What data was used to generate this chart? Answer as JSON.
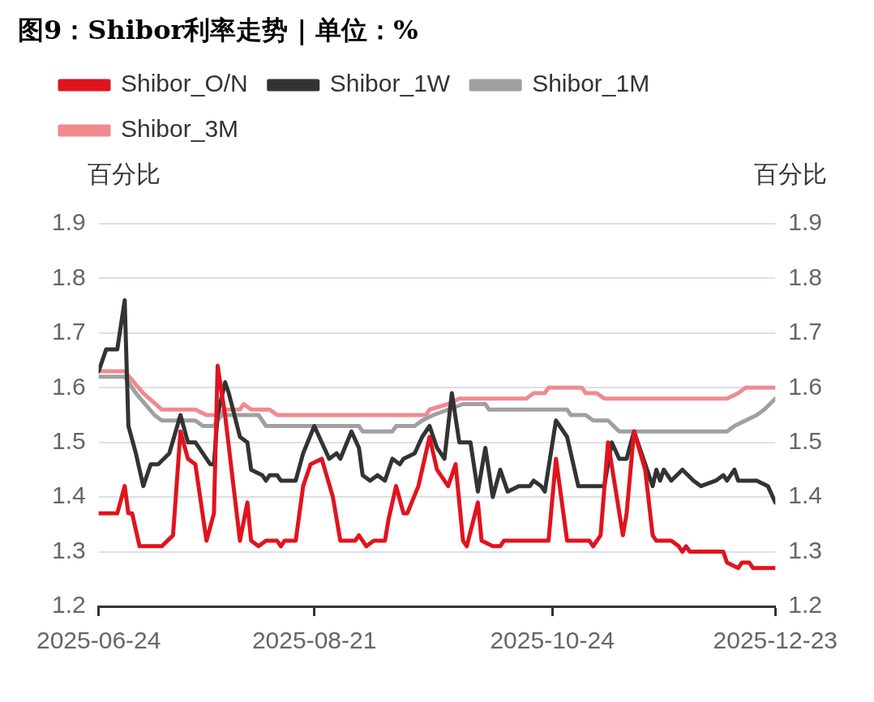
{
  "chart_data": {
    "type": "line",
    "title": "图9：Shibor利率走势 | 单位：%",
    "ylabel": "百分比",
    "y2label": "百分比",
    "xlim": [
      "2025-06-24",
      "2025-12-23"
    ],
    "xticks": [
      "2025-06-24",
      "2025-08-21",
      "2025-10-24",
      "2025-12-23"
    ],
    "ylim": [
      1.2,
      1.9
    ],
    "yticks": [
      1.2,
      1.3,
      1.4,
      1.5,
      1.6,
      1.7,
      1.8,
      1.9
    ],
    "y2lim": [
      1.2,
      1.9
    ],
    "y2ticks": [
      1.2,
      1.3,
      1.4,
      1.5,
      1.6,
      1.7,
      1.8,
      1.9
    ],
    "grid": "y",
    "legend": "top",
    "marker": "none",
    "line_style": "solid",
    "series": [
      {
        "name": "Shibor_O/N",
        "color": "#e0141e",
        "x": [
          "2025-06-24",
          "2025-06-29",
          "2025-07-01",
          "2025-07-02",
          "2025-07-03",
          "2025-07-05",
          "2025-07-11",
          "2025-07-14",
          "2025-07-16",
          "2025-07-18",
          "2025-07-20",
          "2025-07-23",
          "2025-07-25",
          "2025-07-26",
          "2025-07-28",
          "2025-08-01",
          "2025-08-03",
          "2025-08-04",
          "2025-08-06",
          "2025-08-08",
          "2025-08-11",
          "2025-08-12",
          "2025-08-13",
          "2025-08-16",
          "2025-08-18",
          "2025-08-20",
          "2025-08-23",
          "2025-08-26",
          "2025-08-28",
          "2025-09-01",
          "2025-09-02",
          "2025-09-04",
          "2025-09-06",
          "2025-09-09",
          "2025-09-10",
          "2025-09-12",
          "2025-09-14",
          "2025-09-15",
          "2025-09-18",
          "2025-09-21",
          "2025-09-23",
          "2025-09-26",
          "2025-09-28",
          "2025-09-30",
          "2025-10-01",
          "2025-10-04",
          "2025-10-05",
          "2025-10-08",
          "2025-10-10",
          "2025-10-11",
          "2025-10-23",
          "2025-10-25",
          "2025-10-28",
          "2025-11-03",
          "2025-11-04",
          "2025-11-06",
          "2025-11-08",
          "2025-11-12",
          "2025-11-13",
          "2025-11-15",
          "2025-11-18",
          "2025-11-20",
          "2025-11-21",
          "2025-11-25",
          "2025-11-27",
          "2025-11-28",
          "2025-11-29",
          "2025-11-30",
          "2025-12-09",
          "2025-12-10",
          "2025-12-13",
          "2025-12-14",
          "2025-12-16",
          "2025-12-17",
          "2025-12-23"
        ],
        "values": [
          1.37,
          1.37,
          1.42,
          1.37,
          1.37,
          1.31,
          1.31,
          1.33,
          1.52,
          1.47,
          1.46,
          1.32,
          1.37,
          1.64,
          1.55,
          1.32,
          1.39,
          1.32,
          1.31,
          1.32,
          1.32,
          1.31,
          1.32,
          1.32,
          1.42,
          1.46,
          1.47,
          1.4,
          1.32,
          1.32,
          1.33,
          1.31,
          1.32,
          1.32,
          1.36,
          1.42,
          1.37,
          1.37,
          1.42,
          1.51,
          1.45,
          1.42,
          1.46,
          1.32,
          1.31,
          1.39,
          1.32,
          1.31,
          1.31,
          1.32,
          1.32,
          1.47,
          1.32,
          1.32,
          1.31,
          1.33,
          1.5,
          1.33,
          1.37,
          1.52,
          1.45,
          1.33,
          1.32,
          1.32,
          1.31,
          1.3,
          1.31,
          1.3,
          1.3,
          1.28,
          1.27,
          1.28,
          1.28,
          1.27,
          1.27
        ]
      },
      {
        "name": "Shibor_1W",
        "color": "#333333",
        "x": [
          "2025-06-24",
          "2025-06-26",
          "2025-06-29",
          "2025-07-01",
          "2025-07-02",
          "2025-07-04",
          "2025-07-06",
          "2025-07-08",
          "2025-07-10",
          "2025-07-13",
          "2025-07-16",
          "2025-07-18",
          "2025-07-20",
          "2025-07-22",
          "2025-07-24",
          "2025-07-25",
          "2025-07-26",
          "2025-07-28",
          "2025-07-29",
          "2025-08-01",
          "2025-08-03",
          "2025-08-04",
          "2025-08-07",
          "2025-08-08",
          "2025-08-09",
          "2025-08-11",
          "2025-08-12",
          "2025-08-16",
          "2025-08-18",
          "2025-08-21",
          "2025-08-23",
          "2025-08-25",
          "2025-08-27",
          "2025-08-28",
          "2025-08-31",
          "2025-09-02",
          "2025-09-03",
          "2025-09-05",
          "2025-09-07",
          "2025-09-09",
          "2025-09-11",
          "2025-09-13",
          "2025-09-14",
          "2025-09-17",
          "2025-09-19",
          "2025-09-21",
          "2025-09-23",
          "2025-09-25",
          "2025-09-27",
          "2025-09-29",
          "2025-10-02",
          "2025-10-04",
          "2025-10-06",
          "2025-10-08",
          "2025-10-10",
          "2025-10-12",
          "2025-10-15",
          "2025-10-18",
          "2025-10-19",
          "2025-10-21",
          "2025-10-22",
          "2025-10-25",
          "2025-10-28",
          "2025-10-31",
          "2025-11-07",
          "2025-11-09",
          "2025-11-11",
          "2025-11-13",
          "2025-11-15",
          "2025-11-20",
          "2025-11-21",
          "2025-11-22",
          "2025-11-23",
          "2025-11-25",
          "2025-11-28",
          "2025-12-01",
          "2025-12-03",
          "2025-12-07",
          "2025-12-09",
          "2025-12-10",
          "2025-12-12",
          "2025-12-13",
          "2025-12-18",
          "2025-12-21",
          "2025-12-23"
        ],
        "values": [
          1.63,
          1.67,
          1.67,
          1.76,
          1.53,
          1.48,
          1.42,
          1.46,
          1.46,
          1.48,
          1.55,
          1.5,
          1.5,
          1.48,
          1.46,
          1.46,
          1.55,
          1.61,
          1.59,
          1.51,
          1.5,
          1.45,
          1.44,
          1.43,
          1.44,
          1.44,
          1.43,
          1.43,
          1.48,
          1.53,
          1.5,
          1.47,
          1.48,
          1.47,
          1.52,
          1.49,
          1.44,
          1.43,
          1.44,
          1.43,
          1.47,
          1.46,
          1.47,
          1.48,
          1.51,
          1.53,
          1.49,
          1.47,
          1.59,
          1.5,
          1.5,
          1.41,
          1.49,
          1.4,
          1.45,
          1.41,
          1.42,
          1.42,
          1.43,
          1.42,
          1.41,
          1.54,
          1.51,
          1.42,
          1.42,
          1.5,
          1.47,
          1.47,
          1.52,
          1.42,
          1.45,
          1.43,
          1.45,
          1.43,
          1.45,
          1.43,
          1.42,
          1.43,
          1.44,
          1.43,
          1.45,
          1.43,
          1.43,
          1.42,
          1.39
        ]
      },
      {
        "name": "Shibor_1M",
        "color": "#a0a0a0",
        "x": [
          "2025-06-24",
          "2025-07-01",
          "2025-07-04",
          "2025-07-09",
          "2025-07-11",
          "2025-07-20",
          "2025-07-22",
          "2025-07-25",
          "2025-07-27",
          "2025-08-06",
          "2025-08-08",
          "2025-09-02",
          "2025-09-03",
          "2025-09-11",
          "2025-09-12",
          "2025-09-17",
          "2025-09-19",
          "2025-09-22",
          "2025-09-26",
          "2025-09-30",
          "2025-10-06",
          "2025-10-07",
          "2025-10-28",
          "2025-10-29",
          "2025-11-02",
          "2025-11-04",
          "2025-11-08",
          "2025-11-11",
          "2025-12-10",
          "2025-12-12",
          "2025-12-15",
          "2025-12-18",
          "2025-12-20",
          "2025-12-23"
        ],
        "values": [
          1.62,
          1.62,
          1.59,
          1.55,
          1.54,
          1.54,
          1.53,
          1.53,
          1.55,
          1.55,
          1.53,
          1.53,
          1.52,
          1.52,
          1.53,
          1.53,
          1.54,
          1.55,
          1.56,
          1.57,
          1.57,
          1.56,
          1.56,
          1.55,
          1.55,
          1.54,
          1.54,
          1.52,
          1.52,
          1.53,
          1.54,
          1.55,
          1.56,
          1.58
        ]
      },
      {
        "name": "Shibor_3M",
        "color": "#f08a8f",
        "x": [
          "2025-06-24",
          "2025-07-01",
          "2025-07-06",
          "2025-07-11",
          "2025-07-20",
          "2025-07-23",
          "2025-07-26",
          "2025-07-28",
          "2025-08-01",
          "2025-08-02",
          "2025-08-04",
          "2025-08-09",
          "2025-08-11",
          "2025-09-20",
          "2025-09-21",
          "2025-09-26",
          "2025-09-29",
          "2025-10-17",
          "2025-10-19",
          "2025-10-22",
          "2025-10-23",
          "2025-11-01",
          "2025-11-02",
          "2025-11-05",
          "2025-11-07",
          "2025-12-10",
          "2025-12-13",
          "2025-12-15",
          "2025-12-23"
        ],
        "values": [
          1.63,
          1.63,
          1.59,
          1.56,
          1.56,
          1.55,
          1.55,
          1.56,
          1.56,
          1.57,
          1.56,
          1.56,
          1.55,
          1.55,
          1.56,
          1.57,
          1.58,
          1.58,
          1.59,
          1.59,
          1.6,
          1.6,
          1.59,
          1.59,
          1.58,
          1.58,
          1.59,
          1.6,
          1.6
        ]
      }
    ]
  }
}
